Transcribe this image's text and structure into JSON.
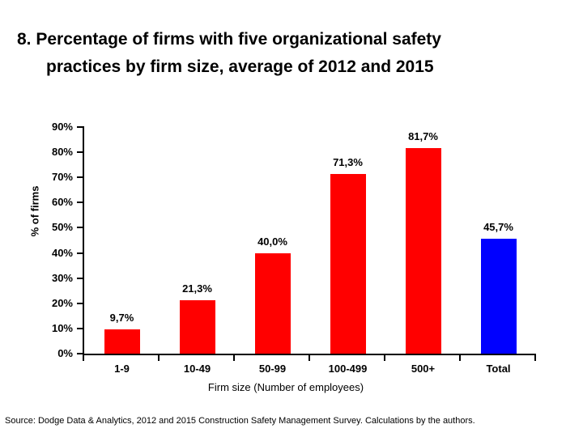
{
  "title": {
    "line1": "8. Percentage of firms with five organizational safety",
    "line2": "practices by firm size, average of 2012 and 2015"
  },
  "source_note": "Source: Dodge Data & Analytics, 2012 and 2015 Construction Safety Management Survey.  Calculations by the authors.",
  "chart_data": {
    "type": "bar",
    "title": "8. Percentage of firms with five organizational safety practices by firm size, average of 2012 and 2015",
    "categories": [
      "1-9",
      "10-49",
      "50-99",
      "100-499",
      "500+",
      "Total"
    ],
    "values": [
      9.7,
      21.3,
      40.0,
      71.3,
      81.7,
      45.7
    ],
    "value_labels": [
      "9,7%",
      "21,3%",
      "40,0%",
      "71,3%",
      "81,7%",
      "45,7%"
    ],
    "bar_colors": [
      "#ff0000",
      "#ff0000",
      "#ff0000",
      "#ff0000",
      "#ff0000",
      "#0000ff"
    ],
    "xlabel": "Firm size (Number of employees)",
    "ylabel": "% of firms",
    "ylim": [
      0,
      90
    ],
    "ytick_step": 10,
    "ytick_labels": [
      "0%",
      "10%",
      "20%",
      "30%",
      "40%",
      "50%",
      "60%",
      "70%",
      "80%",
      "90%"
    ],
    "grid": false,
    "legend": "none",
    "colors": {
      "bar_red": "#ff0000",
      "bar_blue": "#0000ff",
      "axis": "#000000",
      "text": "#000000",
      "background": "#ffffff"
    }
  }
}
